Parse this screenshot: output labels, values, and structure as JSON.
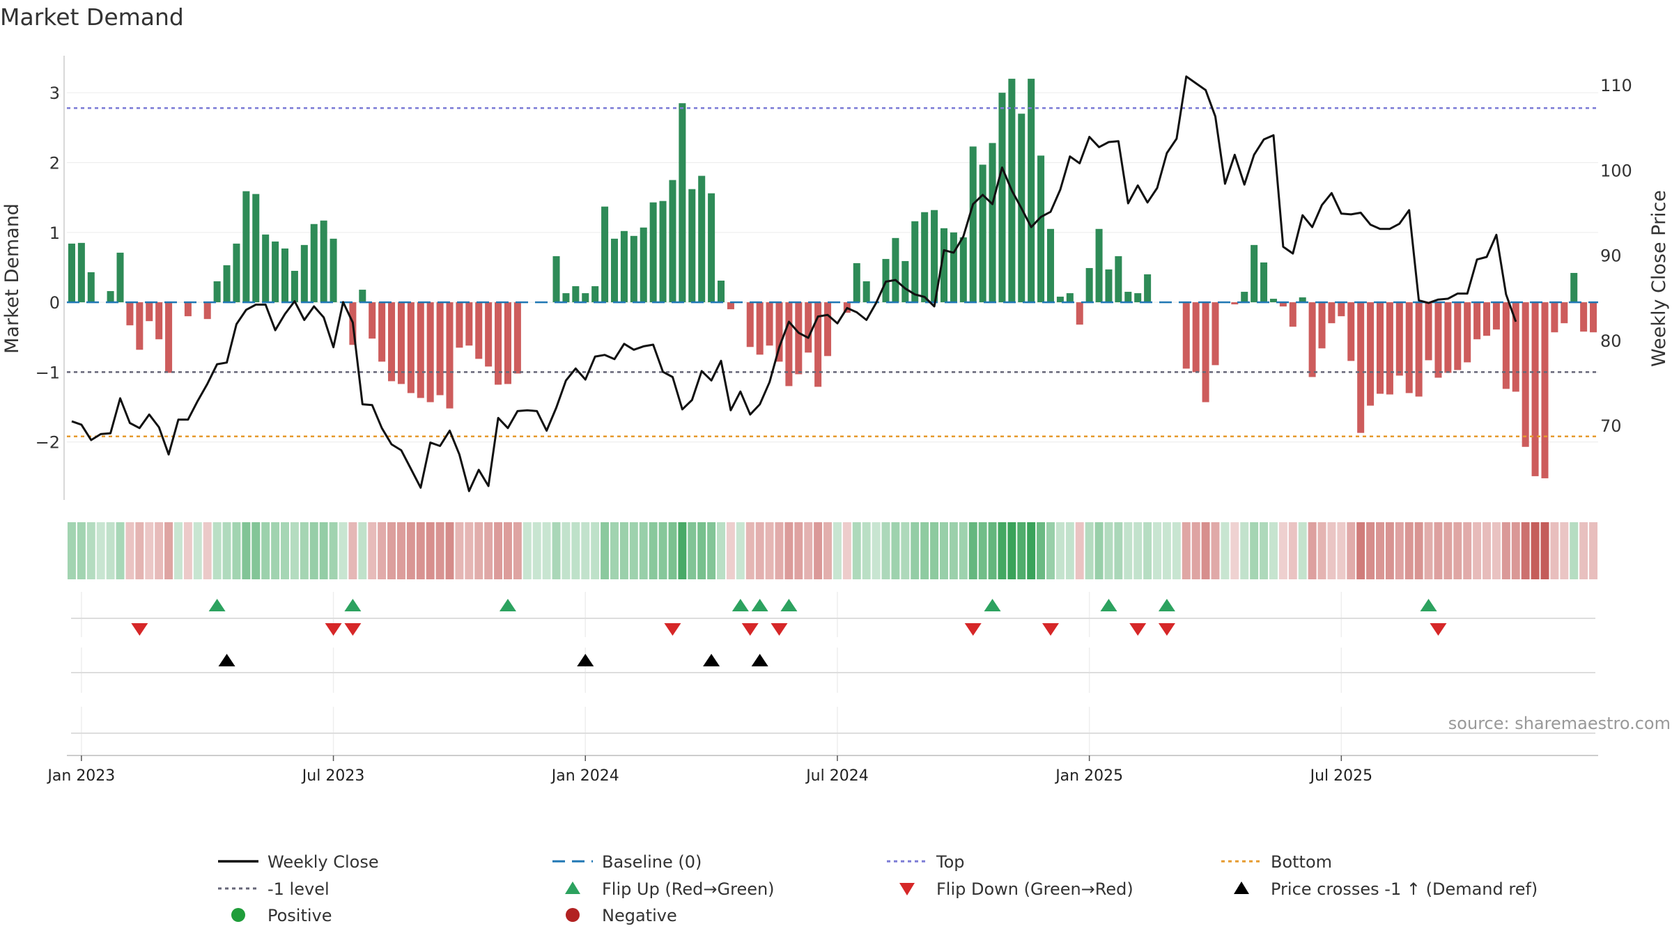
{
  "chart_data": {
    "type": "bar+line",
    "title": "Market Demand",
    "ylabel_left": "Market Demand",
    "ylabel_right": "Weekly Close Price",
    "source": "source: sharemaestro.com",
    "x_tick_labels": [
      "Jan 2023",
      "Jul 2023",
      "Jan 2024",
      "Jul 2024",
      "Jan 2025",
      "Jul 2025"
    ],
    "x_tick_weeks": [
      1,
      27,
      53,
      79,
      105,
      131
    ],
    "ylim_left": [
      -2.85,
      3.55
    ],
    "yticks_left": [
      3,
      2,
      1,
      0,
      -1,
      -2
    ],
    "yticks_left_labels": [
      "3",
      "2",
      "1",
      "0",
      "−1",
      "−2"
    ],
    "ylim_right": [
      61.1,
      113.6
    ],
    "yticks_right": [
      110,
      100,
      90,
      80,
      70
    ],
    "levels": {
      "top": 2.78,
      "minus_one": -1.0,
      "bottom": -1.92
    },
    "colors": {
      "positive": "#2e8b57",
      "negative": "#cd5c5c",
      "close": "#111111",
      "baseline": "#1f77b4",
      "top": "#7b7bd6",
      "bottom": "#e69a2e",
      "minus_one": "#666677",
      "flip_up": "#2ca25f",
      "flip_down": "#d62728",
      "cross": "#000000"
    },
    "demand": [
      0.84,
      0.85,
      0.43,
      0.0,
      0.16,
      0.71,
      -0.33,
      -0.68,
      -0.27,
      -0.53,
      -1.01,
      0.0,
      -0.2,
      0.0,
      -0.24,
      0.3,
      0.53,
      0.84,
      1.59,
      1.55,
      0.97,
      0.87,
      0.77,
      0.45,
      0.82,
      1.12,
      1.17,
      0.91,
      0.0,
      -0.61,
      0.18,
      -0.52,
      -0.85,
      -1.13,
      -1.17,
      -1.3,
      -1.37,
      -1.43,
      -1.33,
      -1.52,
      -0.65,
      -0.62,
      -0.81,
      -0.92,
      -1.18,
      -1.17,
      -1.02,
      0.0,
      0.0,
      0.0,
      0.66,
      0.13,
      0.23,
      0.13,
      0.23,
      1.37,
      0.91,
      1.02,
      0.95,
      1.07,
      1.43,
      1.45,
      1.75,
      2.85,
      1.62,
      1.81,
      1.56,
      0.31,
      -0.1,
      0.0,
      -0.64,
      -0.75,
      -0.62,
      -0.85,
      -1.2,
      -1.03,
      -0.72,
      -1.21,
      -0.77,
      0.0,
      -0.15,
      0.56,
      0.3,
      0.0,
      0.62,
      0.92,
      0.59,
      1.16,
      1.29,
      1.32,
      1.06,
      1.0,
      0.93,
      2.23,
      1.97,
      2.28,
      3.0,
      3.2,
      2.7,
      3.2,
      2.1,
      1.05,
      0.08,
      0.13,
      -0.32,
      0.49,
      1.05,
      0.47,
      0.66,
      0.15,
      0.13,
      0.4,
      0.0,
      0.0,
      0.0,
      -0.95,
      -1.0,
      -1.43,
      -0.9,
      0.0,
      -0.03,
      0.15,
      0.82,
      0.57,
      0.05,
      -0.06,
      -0.35,
      0.07,
      -1.07,
      -0.66,
      -0.3,
      -0.2,
      -0.84,
      -1.87,
      -1.48,
      -1.31,
      -1.32,
      -1.05,
      -1.3,
      -1.35,
      -0.83,
      -1.08,
      -1.01,
      -0.97,
      -0.86,
      -0.53,
      -0.48,
      -0.39,
      -1.24,
      -1.28,
      -2.07,
      -2.49,
      -2.52,
      -0.43,
      -0.3,
      0.42,
      -0.42,
      -0.43
    ],
    "weekly_close": [
      70.5,
      70.1,
      68.3,
      69.0,
      69.1,
      73.2,
      70.3,
      69.7,
      71.3,
      69.8,
      66.6,
      70.7,
      70.7,
      72.9,
      74.9,
      77.2,
      77.4,
      81.9,
      83.6,
      84.2,
      84.2,
      81.2,
      83.1,
      84.6,
      82.4,
      84.0,
      82.7,
      79.2,
      84.5,
      82.1,
      72.5,
      72.4,
      69.7,
      67.8,
      67.1,
      64.9,
      62.7,
      68.0,
      67.6,
      69.4,
      66.6,
      62.3,
      64.8,
      62.9,
      70.9,
      69.7,
      71.7,
      71.8,
      71.7,
      69.4,
      72.1,
      75.3,
      76.7,
      75.4,
      78.1,
      78.3,
      77.8,
      79.6,
      78.9,
      79.3,
      79.5,
      76.3,
      75.7,
      71.9,
      73.0,
      76.4,
      75.3,
      77.6,
      71.8,
      74.0,
      71.3,
      72.5,
      75.1,
      79.2,
      82.2,
      80.9,
      80.3,
      82.8,
      83.0,
      82.0,
      83.8,
      83.3,
      82.4,
      84.4,
      86.9,
      87.1,
      86.1,
      85.4,
      85.1,
      84.0,
      90.6,
      90.3,
      92.2,
      96.0,
      97.1,
      96.0,
      100.3,
      97.6,
      95.5,
      93.3,
      94.5,
      95.1,
      97.7,
      101.6,
      100.8,
      103.9,
      102.7,
      103.3,
      103.4,
      96.1,
      98.2,
      96.2,
      97.9,
      102.0,
      103.7,
      111.0,
      110.2,
      109.4,
      106.3,
      98.4,
      101.8,
      98.3,
      101.8,
      103.6,
      104.1,
      91.0,
      90.2,
      94.7,
      93.3,
      95.9,
      97.3,
      94.9,
      94.8,
      95.0,
      93.6,
      93.1,
      93.1,
      93.7,
      95.3,
      84.7,
      84.4,
      84.8,
      84.9,
      85.5,
      85.5,
      89.5,
      89.8,
      92.4,
      85.4,
      82.2
    ],
    "flip_up_weeks": [
      15,
      29,
      45,
      69,
      71,
      74,
      95,
      107,
      113,
      140
    ],
    "flip_down_weeks": [
      7,
      27,
      29,
      62,
      70,
      73,
      93,
      101,
      110,
      113,
      141
    ],
    "price_cross_weeks": [
      16,
      53,
      66,
      71
    ],
    "legend": [
      {
        "key": "close",
        "label": "Weekly Close",
        "symbol": "line"
      },
      {
        "key": "baseline",
        "label": "Baseline (0)",
        "symbol": "dash"
      },
      {
        "key": "top",
        "label": "Top",
        "symbol": "dot"
      },
      {
        "key": "bottom",
        "label": "Bottom",
        "symbol": "dot"
      },
      {
        "key": "minus_one",
        "label": "-1 level",
        "symbol": "dot"
      },
      {
        "key": "flip_up",
        "label": "Flip Up (Red→Green)",
        "symbol": "tri-up"
      },
      {
        "key": "flip_down",
        "label": "Flip Down (Green→Red)",
        "symbol": "tri-down"
      },
      {
        "key": "cross",
        "label": "Price crosses -1 ↑ (Demand ref)",
        "symbol": "tri-up"
      },
      {
        "key": "positive_dot",
        "label": "Positive",
        "symbol": "circle",
        "color": "#1f9d3a"
      },
      {
        "key": "negative_dot",
        "label": "Negative",
        "symbol": "circle",
        "color": "#b22222"
      }
    ]
  }
}
